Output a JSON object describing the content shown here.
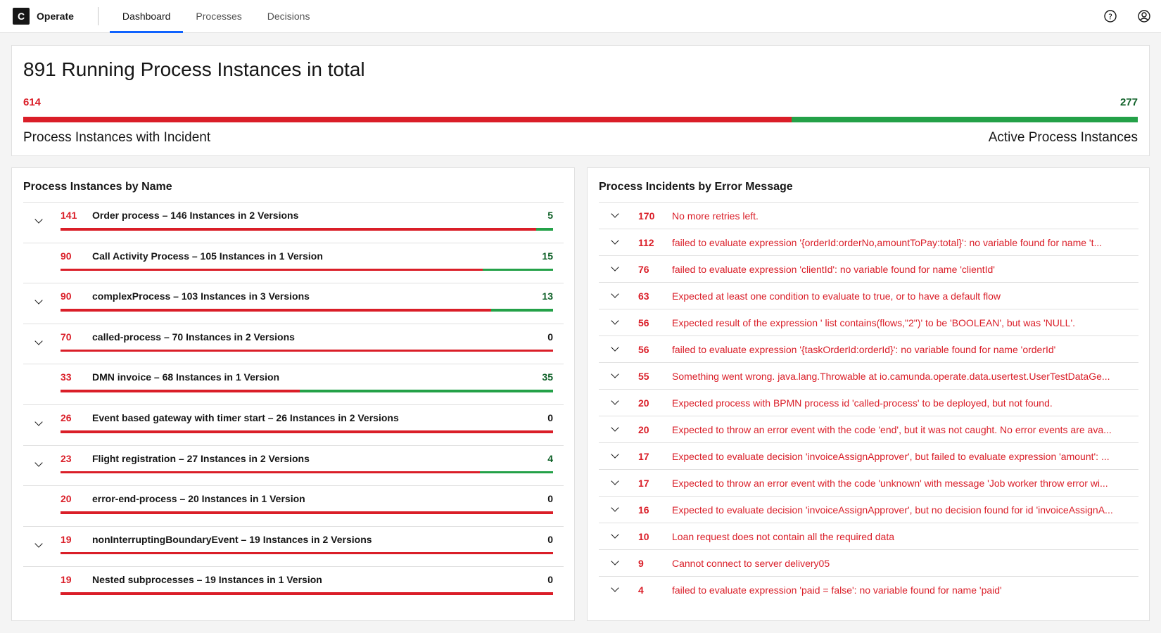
{
  "nav": {
    "logo": "C",
    "app": "Operate",
    "tabs": [
      "Dashboard",
      "Processes",
      "Decisions"
    ],
    "active_tab": 0
  },
  "summary": {
    "title": "891 Running Process Instances in total",
    "incidents": 614,
    "active": 277,
    "incidents_label": "Process Instances with Incident",
    "active_label": "Active Process Instances"
  },
  "by_name": {
    "title": "Process Instances by Name",
    "rows": [
      {
        "incidents": 141,
        "label": "Order process – 146 Instances in 2 Versions",
        "active": 5,
        "expandable": true
      },
      {
        "incidents": 90,
        "label": "Call Activity Process – 105 Instances in 1 Version",
        "active": 15,
        "expandable": false
      },
      {
        "incidents": 90,
        "label": "complexProcess – 103 Instances in 3 Versions",
        "active": 13,
        "expandable": true
      },
      {
        "incidents": 70,
        "label": "called-process – 70 Instances in 2 Versions",
        "active": 0,
        "expandable": true
      },
      {
        "incidents": 33,
        "label": "DMN invoice – 68 Instances in 1 Version",
        "active": 35,
        "expandable": false
      },
      {
        "incidents": 26,
        "label": "Event based gateway with timer start – 26 Instances in 2 Versions",
        "active": 0,
        "expandable": true
      },
      {
        "incidents": 23,
        "label": "Flight registration – 27 Instances in 2 Versions",
        "active": 4,
        "expandable": true
      },
      {
        "incidents": 20,
        "label": "error-end-process – 20 Instances in 1 Version",
        "active": 0,
        "expandable": false
      },
      {
        "incidents": 19,
        "label": "nonInterruptingBoundaryEvent – 19 Instances in 2 Versions",
        "active": 0,
        "expandable": true
      },
      {
        "incidents": 19,
        "label": "Nested subprocesses – 19 Instances in 1 Version",
        "active": 0,
        "expandable": false
      }
    ]
  },
  "by_error": {
    "title": "Process Incidents by Error Message",
    "rows": [
      {
        "count": 170,
        "message": "No more retries left."
      },
      {
        "count": 112,
        "message": "failed to evaluate expression '{orderId:orderNo,amountToPay:total}': no variable found for name 't..."
      },
      {
        "count": 76,
        "message": "failed to evaluate expression 'clientId': no variable found for name 'clientId'"
      },
      {
        "count": 63,
        "message": "Expected at least one condition to evaluate to true, or to have a default flow"
      },
      {
        "count": 56,
        "message": "Expected result of the expression ' list contains(flows,\"2\")' to be 'BOOLEAN', but was 'NULL'."
      },
      {
        "count": 56,
        "message": "failed to evaluate expression '{taskOrderId:orderId}': no variable found for name 'orderId'"
      },
      {
        "count": 55,
        "message": "Something went wrong. java.lang.Throwable at io.camunda.operate.data.usertest.UserTestDataGe..."
      },
      {
        "count": 20,
        "message": "Expected process with BPMN process id 'called-process' to be deployed, but not found."
      },
      {
        "count": 20,
        "message": "Expected to throw an error event with the code 'end', but it was not caught. No error events are ava..."
      },
      {
        "count": 17,
        "message": "Expected to evaluate decision 'invoiceAssignApprover', but failed to evaluate expression 'amount': ..."
      },
      {
        "count": 17,
        "message": "Expected to throw an error event with the code 'unknown' with message 'Job worker throw error wi..."
      },
      {
        "count": 16,
        "message": "Expected to evaluate decision 'invoiceAssignApprover', but no decision found for id 'invoiceAssignA..."
      },
      {
        "count": 10,
        "message": "Loan request does not contain all the required data"
      },
      {
        "count": 9,
        "message": "Cannot connect to server delivery05"
      },
      {
        "count": 4,
        "message": "failed to evaluate expression 'paid = false': no variable found for name 'paid'"
      }
    ]
  }
}
